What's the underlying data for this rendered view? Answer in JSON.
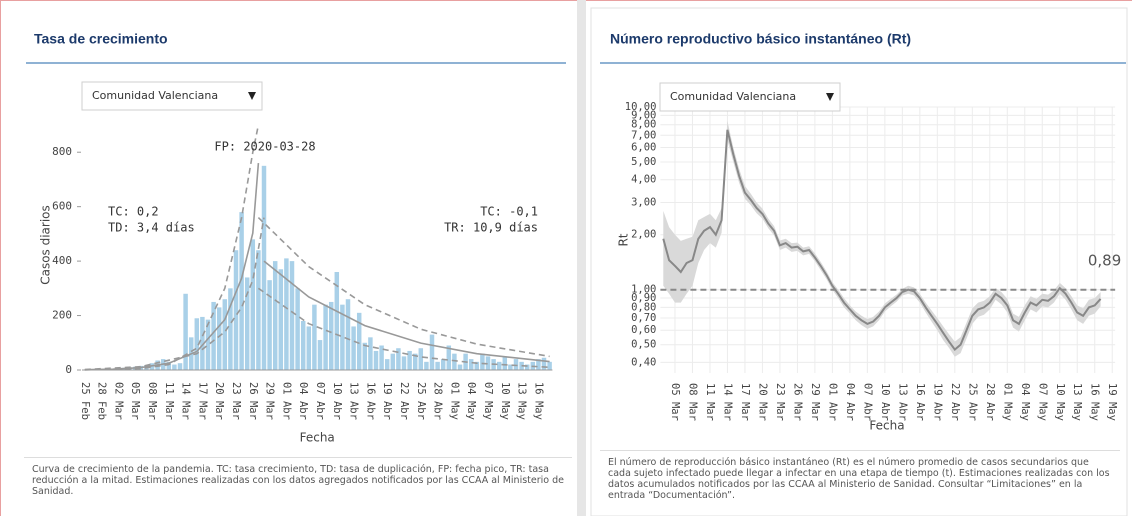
{
  "chart_data": [
    {
      "type": "bar",
      "title": "Tasa de crecimiento",
      "dropdown": "Comunidad Valenciana",
      "xlabel": "Fecha",
      "ylabel": "Casos diarios",
      "categories": [
        "25 Feb",
        null,
        null,
        "28 Feb",
        null,
        null,
        "02 Mar",
        null,
        null,
        "05 Mar",
        null,
        null,
        "08 Mar",
        null,
        null,
        "11 Mar",
        null,
        null,
        "14 Mar",
        null,
        null,
        "17 Mar",
        null,
        null,
        "20 Mar",
        null,
        null,
        "23 Mar",
        null,
        null,
        "26 Mar",
        null,
        null,
        "29 Mar",
        null,
        null,
        "01 Abr",
        null,
        null,
        "04 Abr",
        null,
        null,
        "07 Abr",
        null,
        null,
        "10 Abr",
        null,
        null,
        "13 Abr",
        null,
        null,
        "16 Abr",
        null,
        null,
        "19 Abr",
        null,
        null,
        "22 Abr",
        null,
        null,
        "25 Abr",
        null,
        null,
        "28 Abr",
        null,
        null,
        "01 May",
        null,
        null,
        "04 May",
        null,
        null,
        "07 May",
        null,
        null,
        "10 May",
        null,
        null,
        "13 May",
        null,
        null,
        "16 May",
        null,
        null
      ],
      "values": [
        1,
        2,
        2,
        3,
        3,
        5,
        5,
        8,
        10,
        12,
        15,
        18,
        25,
        35,
        40,
        30,
        20,
        25,
        280,
        120,
        190,
        195,
        185,
        250,
        230,
        260,
        300,
        440,
        580,
        340,
        480,
        440,
        750,
        330,
        400,
        370,
        410,
        400,
        300,
        180,
        160,
        240,
        110,
        240,
        250,
        360,
        240,
        260,
        160,
        210,
        100,
        120,
        70,
        90,
        40,
        60,
        80,
        50,
        70,
        60,
        80,
        30,
        130,
        30,
        40,
        90,
        60,
        20,
        60,
        40,
        30,
        60,
        50,
        40,
        30,
        50,
        20,
        40,
        30,
        20,
        30,
        40,
        45,
        30
      ],
      "color": "#a9d0e8",
      "ylim": [
        0,
        900
      ],
      "yticks": [
        0,
        200,
        400,
        600,
        800
      ],
      "annotations": [
        "FP: 2020-03-28",
        "TC: 0,2",
        "TD: 3,4 días",
        "TC: -0,1",
        "TR: 10,9 días"
      ],
      "curves": [
        {
          "color": "#999999",
          "dash": false,
          "x": [
            0,
            5,
            10,
            15,
            20,
            25,
            28,
            30,
            31
          ],
          "values": [
            1,
            3,
            9,
            25,
            68,
            185,
            337,
            503,
            760
          ]
        },
        {
          "color": "#999999",
          "dash": true,
          "x": [
            0,
            10,
            15,
            20,
            25,
            28,
            30,
            31
          ],
          "values": [
            0.3,
            5,
            20,
            80,
            300,
            560,
            800,
            900
          ]
        },
        {
          "color": "#999999",
          "dash": true,
          "x": [
            0,
            10,
            20,
            25,
            28,
            30,
            32
          ],
          "values": [
            2,
            12,
            60,
            140,
            230,
            330,
            560
          ]
        },
        {
          "color": "#999999",
          "dash": false,
          "x": [
            32,
            40,
            50,
            60,
            70,
            83
          ],
          "values": [
            400,
            268,
            163,
            99,
            60,
            31
          ]
        },
        {
          "color": "#999999",
          "dash": true,
          "x": [
            31,
            40,
            50,
            60,
            70,
            83
          ],
          "values": [
            560,
            380,
            240,
            150,
            95,
            50
          ]
        },
        {
          "color": "#999999",
          "dash": true,
          "x": [
            31,
            40,
            50,
            60,
            70,
            83
          ],
          "values": [
            300,
            170,
            90,
            48,
            25,
            10
          ]
        }
      ]
    },
    {
      "type": "line",
      "title": "Número reproductivo básico instantáneo (Rt)",
      "dropdown": "Comunidad Valenciana",
      "xlabel": "Fecha",
      "ylabel": "Rt",
      "log": true,
      "grid": true,
      "hline": 1,
      "band_color": "#d9d9d9",
      "categories": [
        null,
        null,
        "05 Mar",
        null,
        null,
        "08 Mar",
        null,
        null,
        "11 Mar",
        null,
        null,
        "14 Mar",
        null,
        null,
        "17 Mar",
        null,
        null,
        "20 Mar",
        null,
        null,
        "23 Mar",
        null,
        null,
        "26 Mar",
        null,
        null,
        "29 Mar",
        null,
        null,
        "01 Abr",
        null,
        null,
        "04 Abr",
        null,
        null,
        "07 Abr",
        null,
        null,
        "10 Abr",
        null,
        null,
        "13 Abr",
        null,
        null,
        "16 Abr",
        null,
        null,
        "19 Abr",
        null,
        null,
        "22 Abr",
        null,
        null,
        "25 Abr",
        null,
        null,
        "28 Abr",
        null,
        null,
        "01 May",
        null,
        null,
        "04 May",
        null,
        null,
        "07 May",
        null,
        null,
        "10 May",
        null,
        null,
        "13 May",
        null,
        null,
        "16 May",
        null,
        null,
        "19 May"
      ],
      "series": [
        {
          "color": "#888888",
          "values": [
            1.9,
            1.45,
            1.35,
            1.25,
            1.4,
            1.45,
            1.9,
            2.1,
            2.2,
            2.0,
            2.4,
            7.5,
            5.5,
            4.2,
            3.4,
            3.1,
            2.8,
            2.6,
            2.3,
            2.1,
            1.75,
            1.8,
            1.7,
            1.72,
            1.62,
            1.65,
            1.5,
            1.35,
            1.2,
            1.05,
            0.95,
            0.85,
            0.78,
            0.72,
            0.68,
            0.65,
            0.67,
            0.72,
            0.8,
            0.85,
            0.9,
            0.97,
            1.0,
            0.98,
            0.9,
            0.8,
            0.72,
            0.65,
            0.58,
            0.52,
            0.47,
            0.5,
            0.6,
            0.72,
            0.78,
            0.8,
            0.85,
            0.95,
            0.9,
            0.82,
            0.68,
            0.65,
            0.75,
            0.85,
            0.82,
            0.88,
            0.87,
            0.92,
            1.02,
            0.95,
            0.85,
            0.75,
            0.72,
            0.8,
            0.82,
            0.89,
            null,
            null
          ],
          "lower": [
            1.05,
            0.95,
            0.85,
            0.85,
            0.95,
            1.05,
            1.4,
            1.65,
            1.8,
            1.7,
            2.05,
            6.6,
            5.0,
            3.85,
            3.15,
            2.9,
            2.62,
            2.45,
            2.17,
            1.98,
            1.65,
            1.7,
            1.61,
            1.63,
            1.54,
            1.57,
            1.43,
            1.28,
            1.14,
            1.0,
            0.9,
            0.8,
            0.74,
            0.68,
            0.64,
            0.61,
            0.63,
            0.68,
            0.76,
            0.81,
            0.86,
            0.93,
            0.95,
            0.93,
            0.85,
            0.75,
            0.67,
            0.6,
            0.53,
            0.48,
            0.43,
            0.45,
            0.54,
            0.65,
            0.71,
            0.73,
            0.78,
            0.88,
            0.83,
            0.75,
            0.62,
            0.59,
            0.68,
            0.78,
            0.75,
            0.81,
            0.8,
            0.85,
            0.95,
            0.88,
            0.78,
            0.68,
            0.65,
            0.72,
            0.74,
            0.81,
            null,
            null
          ],
          "upper": [
            2.7,
            2.2,
            2.0,
            1.85,
            1.9,
            1.95,
            2.4,
            2.5,
            2.6,
            2.4,
            2.8,
            8.4,
            6.0,
            4.6,
            3.7,
            3.35,
            3.0,
            2.78,
            2.45,
            2.23,
            1.86,
            1.9,
            1.8,
            1.81,
            1.7,
            1.73,
            1.58,
            1.42,
            1.26,
            1.1,
            1.0,
            0.9,
            0.82,
            0.76,
            0.72,
            0.69,
            0.71,
            0.76,
            0.84,
            0.89,
            0.94,
            1.01,
            1.05,
            1.03,
            0.95,
            0.85,
            0.77,
            0.7,
            0.63,
            0.57,
            0.52,
            0.55,
            0.66,
            0.79,
            0.85,
            0.87,
            0.92,
            1.02,
            0.97,
            0.89,
            0.74,
            0.71,
            0.82,
            0.92,
            0.89,
            0.95,
            0.94,
            0.99,
            1.09,
            1.02,
            0.92,
            0.82,
            0.79,
            0.88,
            0.9,
            0.97,
            null,
            null
          ],
          "value_labels": [
            null,
            null,
            null,
            null,
            null,
            null,
            null,
            null,
            null,
            null,
            null,
            null,
            null,
            null,
            null,
            null,
            null,
            null,
            null,
            null,
            null,
            null,
            null,
            null,
            null,
            null,
            null,
            null,
            null,
            null,
            null,
            null,
            null,
            null,
            null,
            null,
            null,
            null,
            null,
            null,
            null,
            null,
            null,
            null,
            null,
            null,
            null,
            null,
            null,
            null,
            null,
            null,
            null,
            null,
            null,
            null,
            null,
            null,
            null,
            null,
            null,
            null,
            null,
            null,
            null,
            null,
            null,
            null,
            null,
            null,
            null,
            null,
            null,
            null,
            null,
            "0,89",
            null,
            null
          ]
        }
      ],
      "ylim": [
        0.35,
        10
      ],
      "yticks": [
        {
          "value": 0.4,
          "label": "0,40"
        },
        {
          "value": 0.5,
          "label": "0,50"
        },
        {
          "value": 0.6,
          "label": "0,60"
        },
        {
          "value": 0.7,
          "label": "0,70"
        },
        {
          "value": 0.8,
          "label": "0,80"
        },
        {
          "value": 0.9,
          "label": "0,90"
        },
        {
          "value": 1,
          "label": "1,00"
        },
        {
          "value": 2,
          "label": "2,00"
        },
        {
          "value": 3,
          "label": "3,00"
        },
        {
          "value": 4,
          "label": "4,00"
        },
        {
          "value": 5,
          "label": "5,00"
        },
        {
          "value": 6,
          "label": "6,00"
        },
        {
          "value": 7,
          "label": "7,00"
        },
        {
          "value": 8,
          "label": "8,00"
        },
        {
          "value": 9,
          "label": "9,00"
        },
        {
          "value": 10,
          "label": "10,00"
        }
      ]
    }
  ],
  "notes": [
    "Curva de crecimiento de la pandemia. TC: tasa crecimiento, TD: tasa de duplicación, FP: fecha pico, TR: tasa reducción a la mitad. Estimaciones realizadas con los datos agregados notificados por las CCAA al Ministerio de Sanidad.",
    "El número de reproducción básico instantáneo (Rt) es el número promedio de casos secundarios que cada sujeto infectado puede llegar a infectar en una etapa de tiempo (t). Estimaciones realizadas con los datos acumulados notificados por las CCAA al Ministerio de Sanidad. Consultar “Limitaciones” en la entrada “Documentación”."
  ]
}
